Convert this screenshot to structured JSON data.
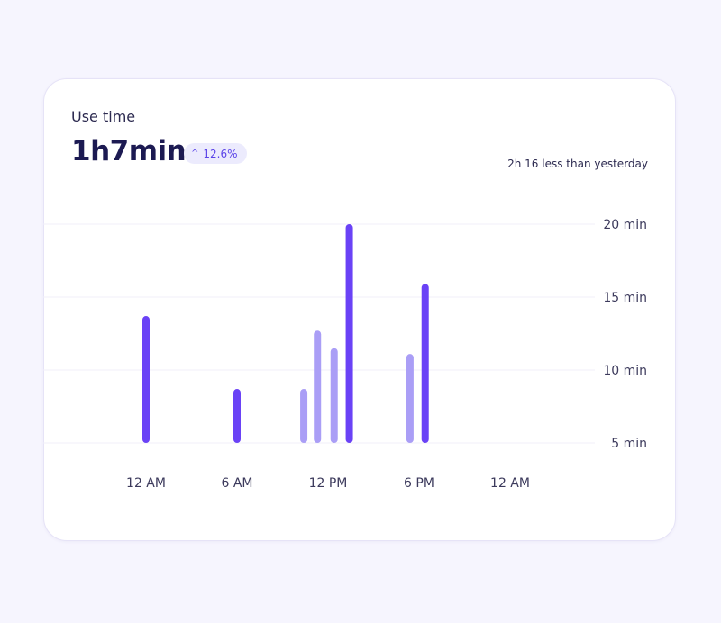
{
  "card": {
    "title": "Use time",
    "total": "1h7min",
    "badge": {
      "caret": "^",
      "value": "12.6%"
    },
    "comparison": "2h 16 less than yesterday"
  },
  "colors": {
    "primary_bar": "#6a42f6",
    "secondary_bar": "#aa9ef6",
    "grid": "#f0eff8",
    "accent_text": "#5b44e8"
  },
  "chart_data": {
    "type": "bar",
    "title": "",
    "xlabel": "",
    "ylabel": "",
    "ylim": [
      5,
      20
    ],
    "y_ticks": [
      {
        "value": 20,
        "label": "20 min"
      },
      {
        "value": 15,
        "label": "15 min"
      },
      {
        "value": 10,
        "label": "10 min"
      },
      {
        "value": 5,
        "label": "5 min"
      }
    ],
    "x_ticks": [
      {
        "hour": 0,
        "label": "12 AM"
      },
      {
        "hour": 6,
        "label": "6 AM"
      },
      {
        "hour": 12,
        "label": "12 PM"
      },
      {
        "hour": 18,
        "label": "6 PM"
      },
      {
        "hour": 24,
        "label": "12 AM"
      }
    ],
    "grid": true,
    "bars": [
      {
        "hour": 0,
        "value": 13.7,
        "style": "primary"
      },
      {
        "hour": 6,
        "value": 8.7,
        "style": "primary"
      },
      {
        "hour": 10.4,
        "value": 8.7,
        "style": "secondary"
      },
      {
        "hour": 11.3,
        "value": 12.7,
        "style": "secondary"
      },
      {
        "hour": 12.4,
        "value": 11.5,
        "style": "secondary"
      },
      {
        "hour": 13.4,
        "value": 20,
        "style": "primary"
      },
      {
        "hour": 17.4,
        "value": 11.1,
        "style": "secondary"
      },
      {
        "hour": 18.4,
        "value": 15.9,
        "style": "primary"
      }
    ]
  }
}
